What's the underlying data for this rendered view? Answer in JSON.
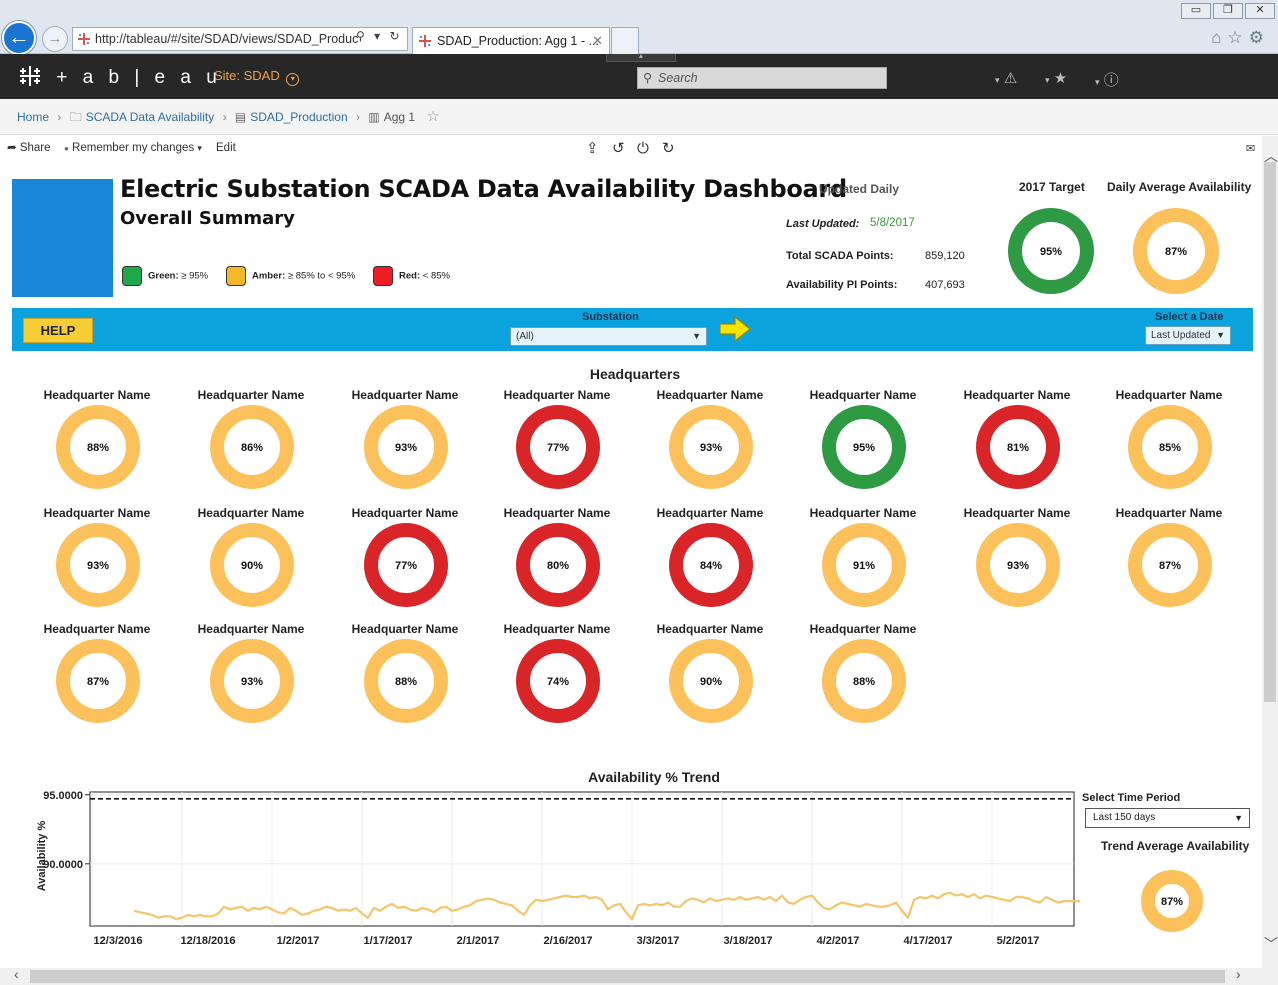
{
  "browser": {
    "url": "http://tableau/#/site/SDAD/views/SDAD_Produc",
    "tab_title": "SDAD_Production: Agg 1 - ...",
    "tab_close": "✕"
  },
  "header": {
    "logo_text": "+ a b | e a u",
    "site_label": "Site:  SDAD",
    "search_placeholder": "Search"
  },
  "breadcrumb": {
    "items": [
      "Home",
      "SCADA Data Availability",
      "SDAD_Production",
      "Agg 1"
    ]
  },
  "toolbar": {
    "share": "Share",
    "remember": "Remember my changes",
    "edit": "Edit"
  },
  "dashboard": {
    "title": "Electric Substation SCADA Data Availability Dashboard",
    "subtitle": "Overall Summary",
    "legend": [
      {
        "label": "Green:",
        "rule": "≥ 95%",
        "color": "#1fa84a"
      },
      {
        "label": "Amber:",
        "rule": "≥ 85% to < 95%",
        "color": "#f5b829"
      },
      {
        "label": "Red:",
        "rule": "< 85%",
        "color": "#ee1c24"
      }
    ],
    "updated_daily": "Updated Daily",
    "last_updated_label": "Last Updated:",
    "last_updated_value": "5/8/2017",
    "total_points_label": "Total SCADA Points:",
    "total_points_value": "859,120",
    "pi_points_label": "Availability PI Points:",
    "pi_points_value": "407,693",
    "target_label": "2017 Target",
    "target_value": "95%",
    "target_pct": 95,
    "daily_avg_label": "Daily Average Availability",
    "daily_avg_value": "87%",
    "daily_avg_pct": 87
  },
  "filters": {
    "help": "HELP",
    "substation_label": "Substation",
    "substation_value": "(All)",
    "date_label": "Select a Date",
    "date_value": "Last Updated"
  },
  "headquarters": {
    "title": "Headquarters",
    "items": [
      {
        "name": "Headquarter Name",
        "value": "88%",
        "pct": 88
      },
      {
        "name": "Headquarter Name",
        "value": "86%",
        "pct": 86
      },
      {
        "name": "Headquarter Name",
        "value": "93%",
        "pct": 93
      },
      {
        "name": "Headquarter Name",
        "value": "77%",
        "pct": 77
      },
      {
        "name": "Headquarter Name",
        "value": "93%",
        "pct": 93
      },
      {
        "name": "Headquarter Name",
        "value": "95%",
        "pct": 95
      },
      {
        "name": "Headquarter Name",
        "value": "81%",
        "pct": 81
      },
      {
        "name": "Headquarter Name",
        "value": "85%",
        "pct": 85
      },
      {
        "name": "Headquarter Name",
        "value": "93%",
        "pct": 93
      },
      {
        "name": "Headquarter Name",
        "value": "90%",
        "pct": 90
      },
      {
        "name": "Headquarter Name",
        "value": "77%",
        "pct": 77
      },
      {
        "name": "Headquarter Name",
        "value": "80%",
        "pct": 80
      },
      {
        "name": "Headquarter Name",
        "value": "84%",
        "pct": 84
      },
      {
        "name": "Headquarter Name",
        "value": "91%",
        "pct": 91
      },
      {
        "name": "Headquarter Name",
        "value": "93%",
        "pct": 93
      },
      {
        "name": "Headquarter Name",
        "value": "87%",
        "pct": 87
      },
      {
        "name": "Headquarter Name",
        "value": "87%",
        "pct": 87
      },
      {
        "name": "Headquarter Name",
        "value": "93%",
        "pct": 93
      },
      {
        "name": "Headquarter Name",
        "value": "88%",
        "pct": 88
      },
      {
        "name": "Headquarter Name",
        "value": "74%",
        "pct": 74
      },
      {
        "name": "Headquarter Name",
        "value": "90%",
        "pct": 90
      },
      {
        "name": "Headquarter Name",
        "value": "88%",
        "pct": 88
      }
    ]
  },
  "trend": {
    "title": "Availability % Trend",
    "time_period_label": "Select Time Period",
    "time_period_value": "Last 150 days",
    "avg_label": "Trend Average Availability",
    "avg_value": "87%",
    "avg_pct": 87
  },
  "colors": {
    "green": "#2e9a44",
    "amber": "#fdc15c",
    "red": "#d92428",
    "trend_line": "#f5c56a",
    "band": "#0aa3dd"
  },
  "chart_data": {
    "type": "line",
    "title": "Availability % Trend",
    "xlabel": "",
    "ylabel": "Availability %",
    "ylim": [
      85.5,
      95.2
    ],
    "yticks": [
      "95.0000",
      "90.0000"
    ],
    "xticks": [
      "12/3/2016",
      "12/18/2016",
      "1/2/2017",
      "1/17/2017",
      "2/1/2017",
      "2/16/2017",
      "3/3/2017",
      "3/18/2017",
      "4/2/2017",
      "4/17/2017",
      "5/2/2017"
    ],
    "reference_line": 95,
    "x_start": "2016-12-10",
    "series": [
      {
        "values": [
          86.6,
          86.5,
          86.4,
          86.3,
          86.1,
          86.2,
          86.2,
          86.0,
          86.1,
          86.3,
          86.2,
          86.3,
          86.2,
          86.2,
          86.4,
          86.9,
          86.7,
          86.8,
          86.9,
          86.6,
          86.8,
          86.7,
          86.9,
          86.7,
          86.5,
          86.4,
          86.8,
          86.6,
          86.3,
          86.4,
          86.6,
          86.7,
          86.9,
          86.8,
          86.6,
          86.7,
          86.6,
          86.8,
          86.4,
          86.1,
          86.8,
          86.6,
          86.9,
          87.1,
          86.8,
          86.9,
          86.7,
          86.6,
          86.8,
          86.7,
          86.5,
          86.8,
          86.9,
          86.6,
          86.7,
          86.9,
          87.0,
          87.3,
          87.4,
          87.5,
          87.4,
          87.2,
          87.1,
          87.0,
          86.6,
          86.3,
          87.0,
          87.4,
          87.3,
          87.4,
          87.5,
          87.6,
          87.7,
          87.6,
          87.6,
          87.7,
          87.5,
          87.6,
          87.4,
          86.7,
          87.0,
          87.1,
          86.5,
          86.0,
          87.0,
          87.1,
          87.0,
          87.1,
          87.0,
          87.2,
          86.9,
          86.9,
          87.3,
          87.5,
          87.4,
          87.2,
          87.5,
          87.3,
          87.4,
          87.5,
          87.4,
          87.6,
          87.4,
          87.5,
          87.6,
          87.4,
          87.6,
          87.3,
          87.7,
          87.2,
          87.1,
          87.4,
          87.6,
          87.7,
          87.2,
          86.8,
          86.7,
          87.0,
          87.2,
          87.1,
          87.0,
          86.9,
          87.1,
          87.0,
          86.9,
          86.9,
          87.0,
          87.2,
          86.6,
          86.1,
          87.4,
          87.6,
          87.5,
          87.7,
          87.5,
          87.8,
          87.9,
          87.7,
          87.8,
          87.6,
          87.8,
          87.5,
          87.7,
          87.6,
          87.5,
          87.4,
          87.3,
          87.6,
          87.6,
          87.5,
          87.3,
          87.2,
          87.6,
          87.4,
          87.2,
          87.3,
          87.3,
          87.3,
          87.3
        ]
      }
    ]
  }
}
